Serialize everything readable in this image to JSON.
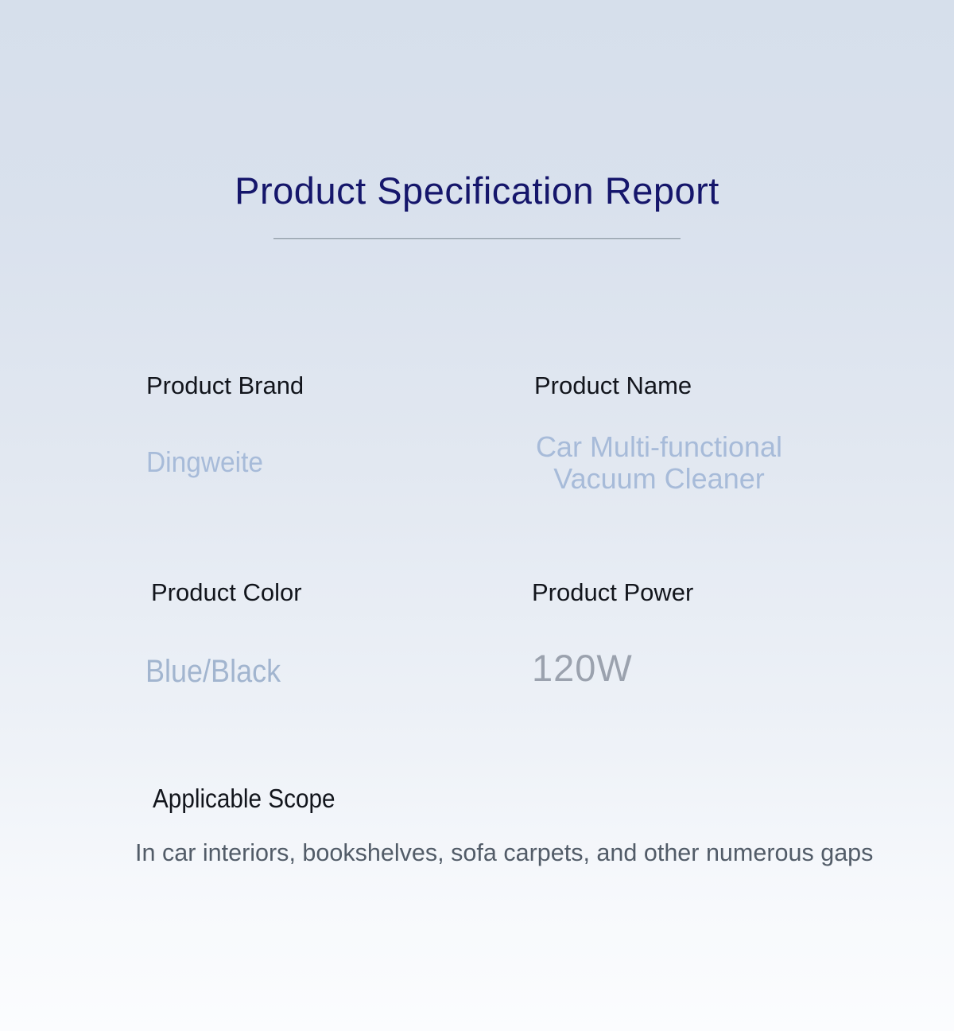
{
  "title": "Product Specification Report",
  "specs": [
    {
      "label": "Product Brand",
      "value": "Dingweite"
    },
    {
      "label": "Product Name",
      "value_line1": "Car Multi-functional",
      "value_line2": "Vacuum Cleaner"
    },
    {
      "label": "Product Color",
      "value": "Blue/Black"
    },
    {
      "label": "Product Power",
      "value": "120W"
    }
  ],
  "scope": {
    "label": "Applicable Scope",
    "description": "In car interiors, bookshelves, sofa carpets, and other numerous gaps"
  },
  "colors": {
    "background_top": "#d6dfeb",
    "background_bottom": "#fbfcfe",
    "title": "#15166b",
    "label": "#12151c",
    "value_light_blue": "#a7bbd9",
    "value_gray": "#9ba2ae",
    "scope_text": "#525c68",
    "divider": "#96a1ad"
  }
}
